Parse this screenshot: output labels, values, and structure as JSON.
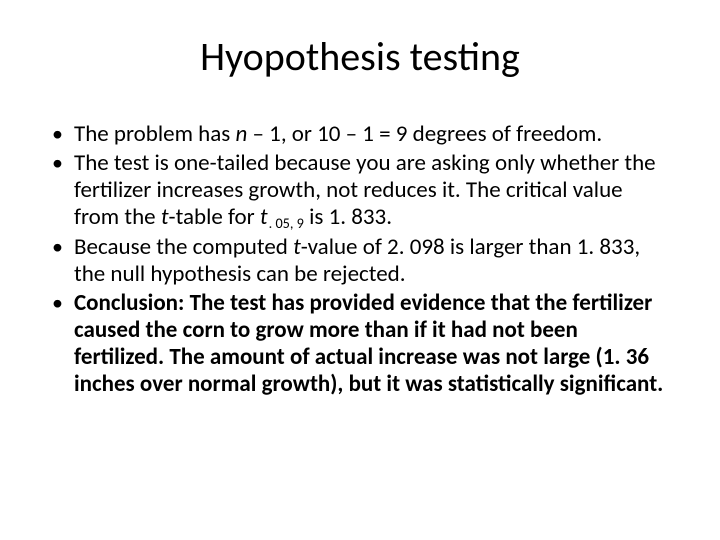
{
  "slide": {
    "title": "Hyopothesis testing",
    "title_fontsize": 40,
    "title_align": "center",
    "title_color": "#000000",
    "body_fontsize": 23,
    "body_color": "#000000",
    "bullet_char": "•",
    "background_color": "#ffffff",
    "bullets": [
      {
        "pre": "The problem has ",
        "ital1": "n",
        "mid1": " – 1, or 10 – 1 = 9 degrees of freedom."
      },
      {
        "pre": " The test is one-tailed because you are asking only whether the fertilizer increases growth, not reduces it. The critical value from the ",
        "ital1": "t",
        "mid1": "-table for ",
        "ital2": "t",
        "sub": ". 05, 9",
        "post": " is 1. 833."
      },
      {
        "pre": "Because the computed ",
        "ital1": "t",
        "mid1": "-value of 2. 098 is larger than 1. 833, the null hypothesis can be rejected."
      },
      {
        "bold_label": "Conclusion:",
        "bold_rest": " The test has provided evidence that the fertilizer caused the corn to grow more than if it had not been fertilized. The amount of actual increase was not large (1. 36 inches over normal growth), but it was statistically significant."
      }
    ]
  }
}
